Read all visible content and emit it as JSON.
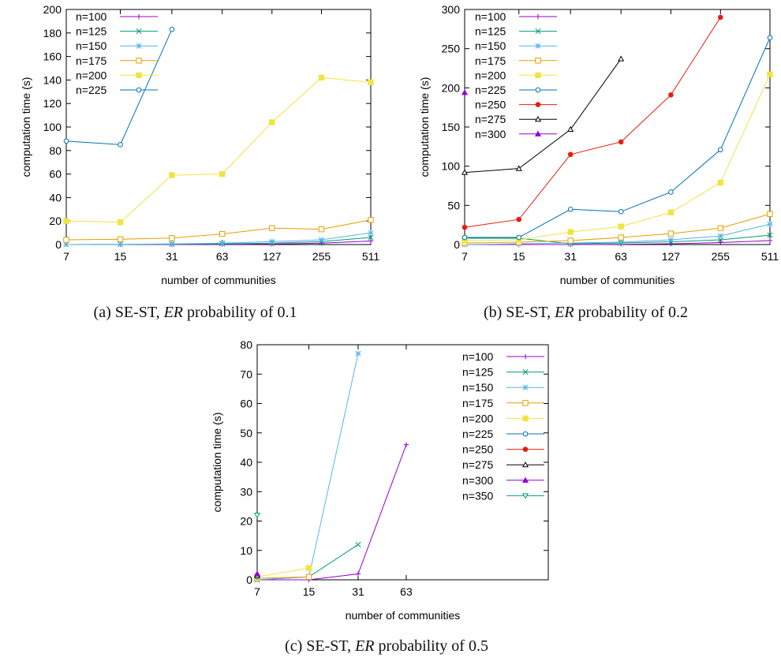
{
  "chart_data": [
    {
      "type": "line",
      "panel": "a",
      "caption": {
        "prefix": "(a) SE-ST, ",
        "er": "ER",
        "suffix": " probability of 0.1"
      },
      "xlabel": "number of communities",
      "ylabel": "computation time (s)",
      "x_ticks": [
        7,
        15,
        31,
        63,
        127,
        255,
        511
      ],
      "ylim": [
        0,
        200
      ],
      "y_ticks": [
        0,
        20,
        40,
        60,
        80,
        100,
        120,
        140,
        160,
        180,
        200
      ],
      "legend_position": "top-left",
      "series": [
        {
          "name": "n=100",
          "color": "#9400d3",
          "marker": "plus",
          "points": [
            [
              7,
              0
            ],
            [
              15,
              0
            ],
            [
              31,
              0
            ],
            [
              63,
              0.2
            ],
            [
              127,
              0.4
            ],
            [
              255,
              1.2
            ],
            [
              511,
              3
            ]
          ]
        },
        {
          "name": "n=125",
          "color": "#009e73",
          "marker": "cross",
          "points": [
            [
              7,
              0
            ],
            [
              15,
              0.1
            ],
            [
              31,
              0.3
            ],
            [
              63,
              0.6
            ],
            [
              127,
              1.2
            ],
            [
              255,
              2.5
            ],
            [
              511,
              6
            ]
          ]
        },
        {
          "name": "n=150",
          "color": "#56b4e9",
          "marker": "star",
          "points": [
            [
              7,
              0
            ],
            [
              15,
              0.2
            ],
            [
              31,
              0.6
            ],
            [
              63,
              1.2
            ],
            [
              127,
              2.5
            ],
            [
              255,
              4
            ],
            [
              511,
              10
            ]
          ]
        },
        {
          "name": "n=175",
          "color": "#e69f00",
          "marker": "square-open",
          "points": [
            [
              7,
              4
            ],
            [
              15,
              4.5
            ],
            [
              31,
              5.5
            ],
            [
              63,
              9
            ],
            [
              127,
              14
            ],
            [
              255,
              13
            ],
            [
              511,
              21
            ]
          ]
        },
        {
          "name": "n=200",
          "color": "#f0e442",
          "marker": "square-filled",
          "points": [
            [
              7,
              20
            ],
            [
              15,
              19
            ],
            [
              31,
              59
            ],
            [
              63,
              60
            ],
            [
              127,
              104
            ],
            [
              255,
              142
            ],
            [
              511,
              138
            ]
          ]
        },
        {
          "name": "n=225",
          "color": "#0072b2",
          "marker": "circle-open",
          "points": [
            [
              7,
              88
            ],
            [
              15,
              85
            ],
            [
              31,
              183
            ]
          ]
        }
      ]
    },
    {
      "type": "line",
      "panel": "b",
      "caption": {
        "prefix": "(b) SE-ST, ",
        "er": "ER",
        "suffix": " probability of 0.2"
      },
      "xlabel": "number of communities",
      "ylabel": "computation time (s)",
      "x_ticks": [
        7,
        15,
        31,
        63,
        127,
        255,
        511
      ],
      "ylim": [
        0,
        300
      ],
      "y_ticks": [
        0,
        50,
        100,
        150,
        200,
        250,
        300
      ],
      "legend_position": "top-left",
      "series": [
        {
          "name": "n=100",
          "color": "#9400d3",
          "marker": "plus",
          "points": [
            [
              7,
              0
            ],
            [
              15,
              0
            ],
            [
              31,
              0
            ],
            [
              63,
              0.3
            ],
            [
              127,
              1
            ],
            [
              255,
              2.5
            ],
            [
              511,
              5
            ]
          ]
        },
        {
          "name": "n=125",
          "color": "#009e73",
          "marker": "cross",
          "points": [
            [
              7,
              8
            ],
            [
              15,
              8
            ],
            [
              31,
              1
            ],
            [
              63,
              2
            ],
            [
              127,
              3.5
            ],
            [
              255,
              6
            ],
            [
              511,
              12
            ]
          ]
        },
        {
          "name": "n=150",
          "color": "#56b4e9",
          "marker": "star",
          "points": [
            [
              7,
              0
            ],
            [
              15,
              1
            ],
            [
              31,
              2
            ],
            [
              63,
              3
            ],
            [
              127,
              6
            ],
            [
              255,
              11
            ],
            [
              511,
              26
            ]
          ]
        },
        {
          "name": "n=175",
          "color": "#e69f00",
          "marker": "square-open",
          "points": [
            [
              7,
              2
            ],
            [
              15,
              3
            ],
            [
              31,
              5
            ],
            [
              63,
              9
            ],
            [
              127,
              14
            ],
            [
              255,
              21
            ],
            [
              511,
              39
            ]
          ]
        },
        {
          "name": "n=200",
          "color": "#f0e442",
          "marker": "square-filled",
          "points": [
            [
              7,
              5
            ],
            [
              15,
              6
            ],
            [
              31,
              16
            ],
            [
              63,
              23
            ],
            [
              127,
              41
            ],
            [
              255,
              79
            ],
            [
              511,
              217
            ]
          ]
        },
        {
          "name": "n=225",
          "color": "#0072b2",
          "marker": "circle-open",
          "points": [
            [
              7,
              9
            ],
            [
              15,
              9
            ],
            [
              31,
              45
            ],
            [
              63,
              42
            ],
            [
              127,
              67
            ],
            [
              255,
              121
            ],
            [
              511,
              264
            ]
          ]
        },
        {
          "name": "n=250",
          "color": "#e51e10",
          "marker": "circle-filled",
          "points": [
            [
              7,
              22
            ],
            [
              15,
              32
            ],
            [
              31,
              115
            ],
            [
              63,
              131
            ],
            [
              127,
              191
            ],
            [
              255,
              290
            ]
          ]
        },
        {
          "name": "n=275",
          "color": "#000000",
          "marker": "triangle-open",
          "points": [
            [
              7,
              92
            ],
            [
              15,
              97
            ],
            [
              31,
              147
            ],
            [
              63,
              237
            ]
          ]
        },
        {
          "name": "n=300",
          "color": "#9400d3",
          "marker": "triangle-filled",
          "points": [
            [
              7,
              194
            ]
          ]
        }
      ]
    },
    {
      "type": "line",
      "panel": "c",
      "caption": {
        "prefix": "(c) SE-ST, ",
        "er": "ER",
        "suffix": " probability of 0.5"
      },
      "xlabel": "number of communities",
      "ylabel": "computation time (s)",
      "x_ticks": [
        7,
        15,
        31,
        63
      ],
      "x_range": [
        7,
        511
      ],
      "ylim": [
        0,
        80
      ],
      "y_ticks": [
        0,
        10,
        20,
        30,
        40,
        50,
        60,
        70,
        80
      ],
      "legend_position": "top-right",
      "series": [
        {
          "name": "n=100",
          "color": "#9400d3",
          "marker": "plus",
          "points": [
            [
              7,
              0
            ],
            [
              15,
              0
            ],
            [
              31,
              2
            ],
            [
              63,
              46
            ]
          ]
        },
        {
          "name": "n=125",
          "color": "#009e73",
          "marker": "cross",
          "points": [
            [
              7,
              0
            ],
            [
              15,
              1
            ],
            [
              31,
              12
            ]
          ]
        },
        {
          "name": "n=150",
          "color": "#56b4e9",
          "marker": "star",
          "points": [
            [
              7,
              0
            ],
            [
              15,
              1
            ],
            [
              31,
              77
            ]
          ]
        },
        {
          "name": "n=175",
          "color": "#e69f00",
          "marker": "square-open",
          "points": [
            [
              7,
              0.5
            ],
            [
              15,
              1
            ]
          ]
        },
        {
          "name": "n=200",
          "color": "#f0e442",
          "marker": "square-filled",
          "points": [
            [
              7,
              1
            ],
            [
              15,
              4
            ]
          ]
        },
        {
          "name": "n=225",
          "color": "#0072b2",
          "marker": "circle-open",
          "points": [
            [
              7,
              1
            ]
          ]
        },
        {
          "name": "n=250",
          "color": "#e51e10",
          "marker": "circle-filled",
          "points": [
            [
              7,
              1.5
            ]
          ]
        },
        {
          "name": "n=275",
          "color": "#000000",
          "marker": "triangle-open",
          "points": [
            [
              7,
              1.5
            ]
          ]
        },
        {
          "name": "n=300",
          "color": "#9400d3",
          "marker": "triangle-filled",
          "points": [
            [
              7,
              2
            ]
          ]
        },
        {
          "name": "n=350",
          "color": "#009e73",
          "marker": "triangle-down-open",
          "points": [
            [
              7,
              22
            ]
          ]
        }
      ]
    }
  ]
}
